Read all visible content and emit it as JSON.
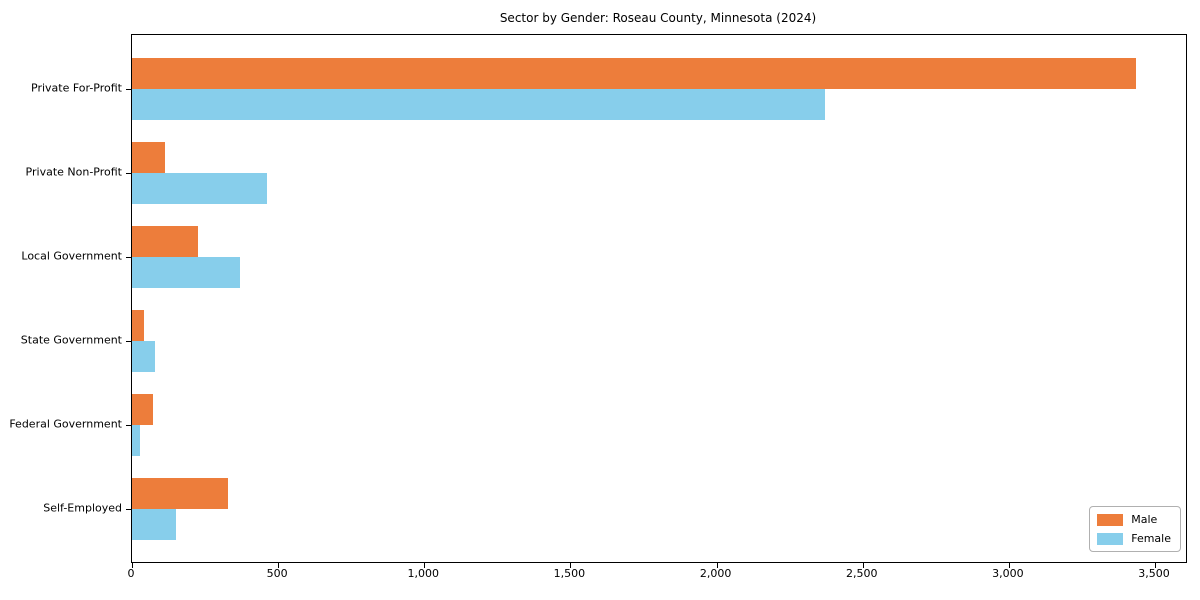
{
  "chart_data": {
    "type": "bar",
    "orientation": "horizontal",
    "title": "Sector by Gender: Roseau County, Minnesota (2024)",
    "categories": [
      "Private For-Profit",
      "Private Non-Profit",
      "Local Government",
      "State Government",
      "Federal Government",
      "Self-Employed"
    ],
    "series": [
      {
        "name": "Male",
        "color": "#ED7D3B",
        "values": [
          3435,
          112,
          226,
          41,
          72,
          328
        ]
      },
      {
        "name": "Female",
        "color": "#87CEEB",
        "values": [
          2370,
          462,
          371,
          77,
          28,
          152
        ]
      }
    ],
    "xlabel": "",
    "ylabel": "",
    "x_tick_labels": [
      "0",
      "500",
      "1,000",
      "1,500",
      "2,000",
      "2,500",
      "3,000",
      "3,500"
    ],
    "x_tick_values": [
      0,
      500,
      1000,
      1500,
      2000,
      2500,
      3000,
      3500
    ],
    "xlim": [
      0,
      3606
    ],
    "grid": false,
    "legend_position": "lower right",
    "bar_edge": "none",
    "background_color": "#ffffff",
    "axis_color": "#000000"
  }
}
